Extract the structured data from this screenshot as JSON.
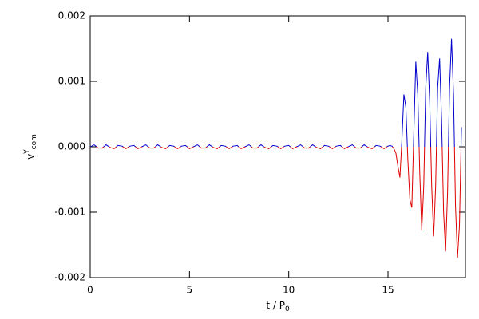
{
  "chart_data": {
    "type": "line",
    "xlabel": {
      "base": "t / P",
      "sub": "0"
    },
    "ylabel": {
      "base": "v",
      "sup": "Y",
      "sub": "com"
    },
    "x": [
      0,
      0.2,
      0.4,
      0.6,
      0.8,
      1,
      1.2,
      1.4,
      1.6,
      1.8,
      2,
      2.2,
      2.4,
      2.6,
      2.8,
      3,
      3.2,
      3.4,
      3.6,
      3.8,
      4,
      4.2,
      4.4,
      4.6,
      4.8,
      5,
      5.2,
      5.4,
      5.6,
      5.8,
      6,
      6.2,
      6.4,
      6.6,
      6.8,
      7,
      7.2,
      7.4,
      7.6,
      7.8,
      8,
      8.2,
      8.4,
      8.6,
      8.8,
      9,
      9.2,
      9.4,
      9.6,
      9.8,
      10,
      10.2,
      10.4,
      10.6,
      10.8,
      11,
      11.2,
      11.4,
      11.6,
      11.8,
      12,
      12.2,
      12.4,
      12.6,
      12.8,
      13,
      13.2,
      13.4,
      13.6,
      13.8,
      14,
      14.2,
      14.4,
      14.6,
      14.8,
      15,
      15.1,
      15.2,
      15.3,
      15.4,
      15.5,
      15.6,
      15.7,
      15.8,
      15.9,
      16,
      16.1,
      16.2,
      16.3,
      16.4,
      16.5,
      16.6,
      16.7,
      16.8,
      16.9,
      17,
      17.1,
      17.2,
      17.3,
      17.4,
      17.5,
      17.6,
      17.7,
      17.8,
      17.9,
      18,
      18.1,
      18.2,
      18.3,
      18.4,
      18.5,
      18.6,
      18.7
    ],
    "values": [
      0,
      3e-05,
      -2e-05,
      -2e-05,
      3e-05,
      -1e-05,
      -3e-05,
      2e-05,
      1e-05,
      -3e-05,
      1e-05,
      2e-05,
      -3e-05,
      0,
      3e-05,
      -2e-05,
      -2e-05,
      3e-05,
      -1e-05,
      -3e-05,
      2e-05,
      1e-05,
      -3e-05,
      1e-05,
      2e-05,
      -3e-05,
      0,
      3e-05,
      -2e-05,
      -2e-05,
      3e-05,
      -1e-05,
      -3e-05,
      2e-05,
      1e-05,
      -3e-05,
      1e-05,
      2e-05,
      -3e-05,
      0,
      3e-05,
      -2e-05,
      -2e-05,
      3e-05,
      -1e-05,
      -3e-05,
      2e-05,
      1e-05,
      -3e-05,
      1e-05,
      2e-05,
      -3e-05,
      0,
      3e-05,
      -2e-05,
      -2e-05,
      3e-05,
      -1e-05,
      -3e-05,
      2e-05,
      1e-05,
      -3e-05,
      1e-05,
      2e-05,
      -3e-05,
      0,
      3e-05,
      -2e-05,
      -2e-05,
      3e-05,
      -1e-05,
      -3e-05,
      2e-05,
      1e-05,
      -3e-05,
      1e-05,
      2e-05,
      1e-05,
      -3e-05,
      -0.0001,
      -0.0003,
      -0.00047,
      0.0001,
      0.0008,
      0.0006,
      -0.0002,
      -0.0008,
      -0.00093,
      0.0002,
      0.0013,
      0.0008,
      -0.0004,
      -0.00128,
      -0.0006,
      0.0009,
      0.00145,
      0.0007,
      -0.0006,
      -0.00137,
      -0.0006,
      0.0009,
      0.00135,
      0.0004,
      -0.001,
      -0.0016,
      -0.0007,
      0.0009,
      0.00165,
      0.0008,
      -0.0009,
      -0.0017,
      -0.0012,
      0.0003
    ],
    "color_positive": "#0000cc",
    "color_negative": "#dd0000",
    "xlim": [
      0,
      18.9
    ],
    "xticks": [
      0,
      5,
      10,
      15
    ],
    "ylim": [
      -0.002,
      0.002
    ],
    "yticks": [
      -0.002,
      -0.001,
      {
        "value": 0,
        "label": "0.000"
      },
      0.001,
      0.002
    ]
  }
}
